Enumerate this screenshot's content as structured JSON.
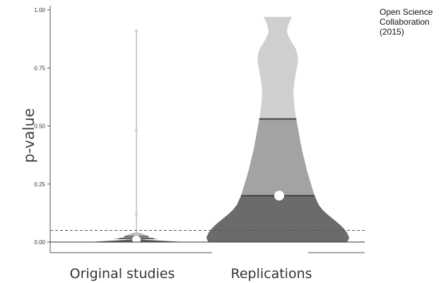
{
  "annotation": "Open Science Collaboration (2015)",
  "chart_data": {
    "type": "violin",
    "ylabel": "p-value",
    "xlabel": "",
    "ylim": [
      0,
      1
    ],
    "yticks": [
      {
        "value": 0.0,
        "label": "0.00"
      },
      {
        "value": 0.25,
        "label": "0.25"
      },
      {
        "value": 0.5,
        "label": "0.50"
      },
      {
        "value": 0.75,
        "label": "0.75"
      },
      {
        "value": 1.0,
        "label": "1.00"
      }
    ],
    "categories": [
      "Original studies",
      "Replications"
    ],
    "reference_line": {
      "value": 0.05,
      "style": "dashed"
    },
    "groups": [
      {
        "category": "Original studies",
        "quartiles": [
          0.005,
          0.015,
          0.025
        ],
        "mean": 0.01,
        "range": [
          0,
          0.91
        ],
        "outliers": [
          0.48,
          0.12
        ],
        "colors": [
          "#585858",
          "#8a8a8a",
          "#bdbdbd"
        ]
      },
      {
        "category": "Replications",
        "quartiles": [
          0.005,
          0.2,
          0.53
        ],
        "mean": 0.2,
        "range": [
          0,
          0.97
        ],
        "colors": [
          "#6b6b6b",
          "#a3a3a3",
          "#cfcfcf"
        ]
      }
    ]
  }
}
